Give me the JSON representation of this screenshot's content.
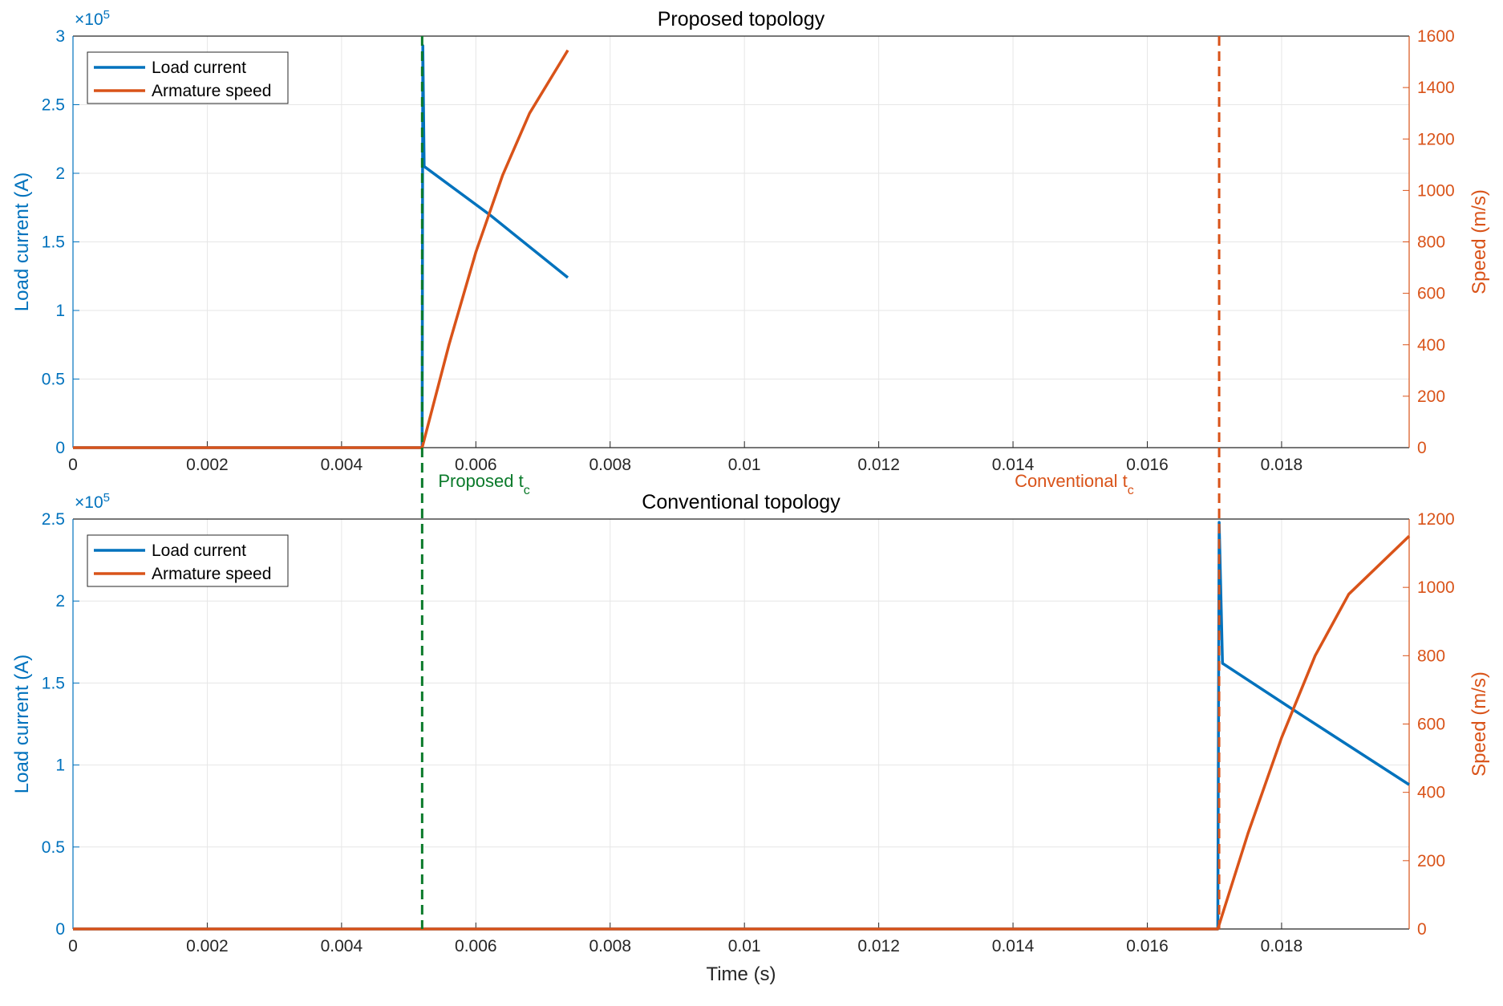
{
  "chart_data": [
    {
      "type": "line",
      "title": "Proposed topology",
      "ylabel": "Load current (A)",
      "y2label": "Speed (m/s)",
      "y_multiplier": {
        "base": "×10",
        "exponent": "5"
      },
      "xlim": [
        0,
        0.0199
      ],
      "xticks": [
        0,
        0.002,
        0.004,
        0.006,
        0.008,
        0.01,
        0.012,
        0.014,
        0.016,
        0.018
      ],
      "ylim": [
        0,
        300000
      ],
      "yticks": [
        {
          "value": 0,
          "label": "0"
        },
        {
          "value": 50000,
          "label": "0.5"
        },
        {
          "value": 100000,
          "label": "1"
        },
        {
          "value": 150000,
          "label": "1.5"
        },
        {
          "value": 200000,
          "label": "2"
        },
        {
          "value": 250000,
          "label": "2.5"
        },
        {
          "value": 300000,
          "label": "3"
        }
      ],
      "y2lim": [
        0,
        1600
      ],
      "y2ticks": [
        0,
        200,
        400,
        600,
        800,
        1000,
        1200,
        1400,
        1600
      ],
      "grid": true,
      "legend": "upper left",
      "series": [
        {
          "name": "Load current",
          "color": "#0072bd",
          "x": [
            0,
            0.0052,
            0.00521,
            0.00523,
            0.0062,
            0.00737
          ],
          "values": [
            0,
            0,
            293000,
            205000,
            170000,
            124000
          ]
        },
        {
          "name": "Armature speed",
          "color": "#d95319",
          "axis": "y2",
          "x": [
            0,
            0.0052,
            0.0056,
            0.006,
            0.0064,
            0.0068,
            0.00737
          ],
          "values": [
            0,
            0,
            400,
            760,
            1060,
            1300,
            1545
          ]
        }
      ],
      "vlines": [
        {
          "x": 0.0052,
          "color": "#0a7a2a",
          "label": "Proposed t",
          "label_sub": "c"
        },
        {
          "x": 0.01707,
          "color": "#d95319",
          "label": "Conventional t",
          "label_sub": "c"
        }
      ]
    },
    {
      "type": "line",
      "title": "Conventional topology",
      "xlabel": "Time (s)",
      "ylabel": "Load current (A)",
      "y2label": "Speed (m/s)",
      "y_multiplier": {
        "base": "×10",
        "exponent": "5"
      },
      "xlim": [
        0,
        0.0199
      ],
      "xticks": [
        0,
        0.002,
        0.004,
        0.006,
        0.008,
        0.01,
        0.012,
        0.014,
        0.016,
        0.018
      ],
      "ylim": [
        0,
        250000
      ],
      "yticks": [
        {
          "value": 0,
          "label": "0"
        },
        {
          "value": 50000,
          "label": "0.5"
        },
        {
          "value": 100000,
          "label": "1"
        },
        {
          "value": 150000,
          "label": "1.5"
        },
        {
          "value": 200000,
          "label": "2"
        },
        {
          "value": 250000,
          "label": "2.5"
        }
      ],
      "y2lim": [
        0,
        1200
      ],
      "y2ticks": [
        0,
        200,
        400,
        600,
        800,
        1000,
        1200
      ],
      "grid": true,
      "legend": "upper left",
      "series": [
        {
          "name": "Load current",
          "color": "#0072bd",
          "x": [
            0,
            0.01705,
            0.01707,
            0.01712,
            0.0182,
            0.0199
          ],
          "values": [
            0,
            0,
            248000,
            162000,
            133000,
            88000
          ]
        },
        {
          "name": "Armature speed",
          "color": "#d95319",
          "axis": "y2",
          "x": [
            0,
            0.01705,
            0.0175,
            0.018,
            0.0185,
            0.019,
            0.0199
          ],
          "values": [
            0,
            0,
            280,
            560,
            800,
            980,
            1150
          ]
        }
      ]
    }
  ]
}
